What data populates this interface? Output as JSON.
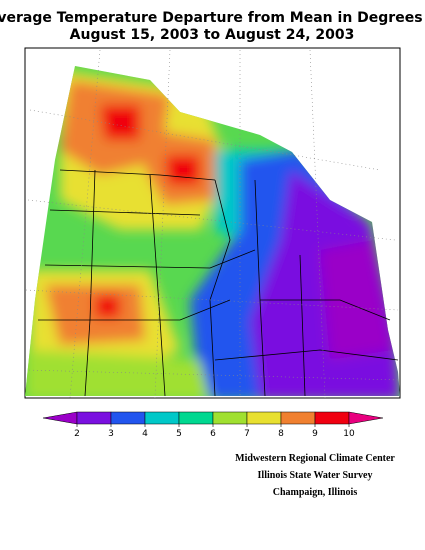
{
  "header": {
    "title": "Average Temperature Departure from Mean in Degrees F",
    "subtitle": "August 15, 2003 to August 24, 2003"
  },
  "legend": {
    "ticks": [
      2,
      3,
      4,
      5,
      6,
      7,
      8,
      9,
      10
    ],
    "colors": [
      "#9a00c8",
      "#7a10e0",
      "#2255ee",
      "#00c8c8",
      "#00d890",
      "#a0e030",
      "#e8e030",
      "#f08030",
      "#f00010",
      "#e8007f"
    ]
  },
  "credits": [
    "Midwestern Regional Climate Center",
    "Illinois State Water Survey",
    "Champaign, Illinois"
  ]
}
